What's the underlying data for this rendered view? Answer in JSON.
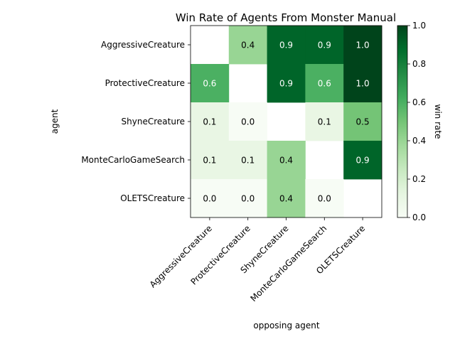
{
  "chart_data": {
    "type": "heatmap",
    "title": "Win Rate of Agents From Monster Manual",
    "xlabel": "opposing agent",
    "ylabel": "agent",
    "x_categories": [
      "AggressiveCreature",
      "ProtectiveCreature",
      "ShyneCreature",
      "MonteCarloGameSearch",
      "OLETSCreature"
    ],
    "y_categories": [
      "AggressiveCreature",
      "ProtectiveCreature",
      "ShyneCreature",
      "MonteCarloGameSearch",
      "OLETSCreature"
    ],
    "values": [
      [
        null,
        0.4,
        0.9,
        0.9,
        1.0
      ],
      [
        0.6,
        null,
        0.9,
        0.6,
        1.0
      ],
      [
        0.1,
        0.0,
        null,
        0.1,
        0.5
      ],
      [
        0.1,
        0.1,
        0.4,
        null,
        0.9
      ],
      [
        0.0,
        0.0,
        0.4,
        0.0,
        null
      ]
    ],
    "colorbar": {
      "label": "win rate",
      "colormap": "Greens",
      "range": [
        0.0,
        1.0
      ],
      "ticks": [
        "0.0",
        "0.2",
        "0.4",
        "0.6",
        "0.8",
        "1.0"
      ]
    },
    "colors": {
      "low": "#f7fcf5",
      "high": "#00441b",
      "label_light": "#ffffff",
      "label_dark": "#000000"
    }
  }
}
